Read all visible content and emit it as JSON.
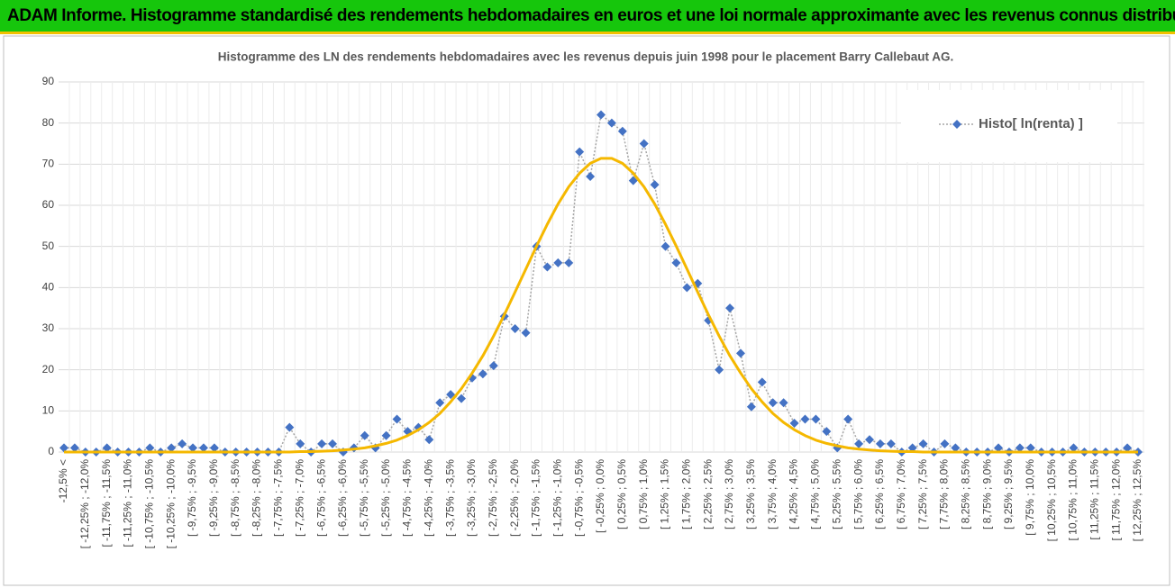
{
  "header": {
    "title": "ADAM Informe. Histogramme standardisé des rendements hebdomadaires en euros et une loi normale approximante avec les revenus connus distribués"
  },
  "chart_data": {
    "type": "line",
    "title": "Histogramme des LN des rendements hebdomadaires avec les revenus depuis juin 1998 pour le placement Barry  Callebaut AG.",
    "categories": [
      "-12,5% <",
      null,
      "[ -12,25% ; -12,0%",
      null,
      "[ -11,75% ; -11,5%",
      null,
      "[ -11,25% ; -11,0%",
      null,
      "[ -10,75% ; -10,5%",
      null,
      "[ -10,25% ; -10,0%",
      null,
      "[ -9,75% ; -9,5%",
      null,
      "[ -9,25% ; -9,0%",
      null,
      "[ -8,75% ; -8,5%",
      null,
      "[ -8,25% ; -8,0%",
      null,
      "[ -7,75% ; -7,5%",
      null,
      "[ -7,25% ; -7,0%",
      null,
      "[ -6,75% ; -6,5%",
      null,
      "[ -6,25% ; -6,0%",
      null,
      "[ -5,75% ; -5,5%",
      null,
      "[ -5,25% ; -5,0%",
      null,
      "[ -4,75% ; -4,5%",
      null,
      "[ -4,25% ; -4,0%",
      null,
      "[ -3,75% ; -3,5%",
      null,
      "[ -3,25% ; -3,0%",
      null,
      "[ -2,75% ; -2,5%",
      null,
      "[ -2,25% ; -2,0%",
      null,
      "[ -1,75% ; -1,5%",
      null,
      "[ -1,25% ; -1,0%",
      null,
      "[ -0,75% ; -0,5%",
      null,
      "[ -0,25% ; 0,0%",
      null,
      "[ 0,25% ; 0,5%",
      null,
      "[ 0,75% ; 1,0%",
      null,
      "[ 1,25% ; 1,5%",
      null,
      "[ 1,75% ; 2,0%",
      null,
      "[ 2,25% ; 2,5%",
      null,
      "[ 2,75% ; 3,0%",
      null,
      "[ 3,25% ; 3,5%",
      null,
      "[ 3,75% ; 4,0%",
      null,
      "[ 4,25% ; 4,5%",
      null,
      "[ 4,75% ; 5,0%",
      null,
      "[ 5,25% ; 5,5%",
      null,
      "[ 5,75% ; 6,0%",
      null,
      "[ 6,25% ; 6,5%",
      null,
      "[ 6,75% ; 7,0%",
      null,
      "[ 7,25% ; 7,5%",
      null,
      "[ 7,75% ; 8,0%",
      null,
      "[ 8,25% ; 8,5%",
      null,
      "[ 8,75% ; 9,0%",
      null,
      "[ 9,25% ; 9,5%",
      null,
      "[ 9,75% ; 10,0%",
      null,
      "[ 10,25% ; 10,5%",
      null,
      "[ 10,75% ; 11,0%",
      null,
      "[ 11,25% ; 11,5%",
      null,
      "[ 11,75% ; 12,0%",
      null,
      "[ 12,25% ; 12,5%"
    ],
    "series": [
      {
        "name": "Histo[ ln(renta) ]",
        "color": "#4472c4",
        "line_color": "#a6a6a6",
        "marker": "diamond",
        "values": [
          1,
          1,
          0,
          0,
          1,
          0,
          0,
          0,
          1,
          0,
          1,
          2,
          1,
          1,
          1,
          0,
          0,
          0,
          0,
          0,
          0,
          6,
          2,
          0,
          2,
          2,
          0,
          1,
          4,
          1,
          4,
          8,
          5,
          6,
          3,
          12,
          14,
          13,
          18,
          19,
          21,
          33,
          30,
          29,
          50,
          45,
          46,
          46,
          73,
          67,
          82,
          80,
          78,
          66,
          75,
          65,
          50,
          46,
          40,
          41,
          32,
          20,
          35,
          24,
          11,
          17,
          12,
          12,
          7,
          8,
          8,
          5,
          1,
          8,
          2,
          3,
          2,
          2,
          0,
          1,
          2,
          0,
          2,
          1,
          0,
          0,
          0,
          1,
          0,
          1,
          1,
          0,
          0,
          0,
          1,
          0,
          0,
          0,
          0,
          1,
          0
        ]
      },
      {
        "color": "#f5b800",
        "values": [
          0,
          0,
          0,
          0,
          0,
          0,
          0,
          0,
          0,
          0,
          0,
          0,
          0,
          0,
          0,
          0,
          0,
          0,
          0,
          0,
          0,
          0,
          0.1,
          0.1,
          0.2,
          0.3,
          0.5,
          0.7,
          1.0,
          1.5,
          2.1,
          2.9,
          4.0,
          5.4,
          7.2,
          9.4,
          12.2,
          15.4,
          19.2,
          23.4,
          28.2,
          33.4,
          38.9,
          44.5,
          50.1,
          55.4,
          60.3,
          64.5,
          67.8,
          70.2,
          71.4,
          71.4,
          70.2,
          67.8,
          64.5,
          60.3,
          55.4,
          50.1,
          44.5,
          38.9,
          33.4,
          28.2,
          23.4,
          19.2,
          15.4,
          12.2,
          9.4,
          7.2,
          5.4,
          4.0,
          2.9,
          2.1,
          1.5,
          1.0,
          0.7,
          0.5,
          0.3,
          0.2,
          0.1,
          0.1,
          0,
          0,
          0,
          0,
          0,
          0,
          0,
          0,
          0,
          0,
          0,
          0,
          0,
          0,
          0,
          0,
          0,
          0,
          0,
          0,
          0
        ]
      }
    ],
    "ylim": [
      0,
      90
    ],
    "yticks": [
      0,
      10,
      20,
      30,
      40,
      50,
      60,
      70,
      80,
      90
    ],
    "grid": true,
    "legend": "top-right"
  }
}
